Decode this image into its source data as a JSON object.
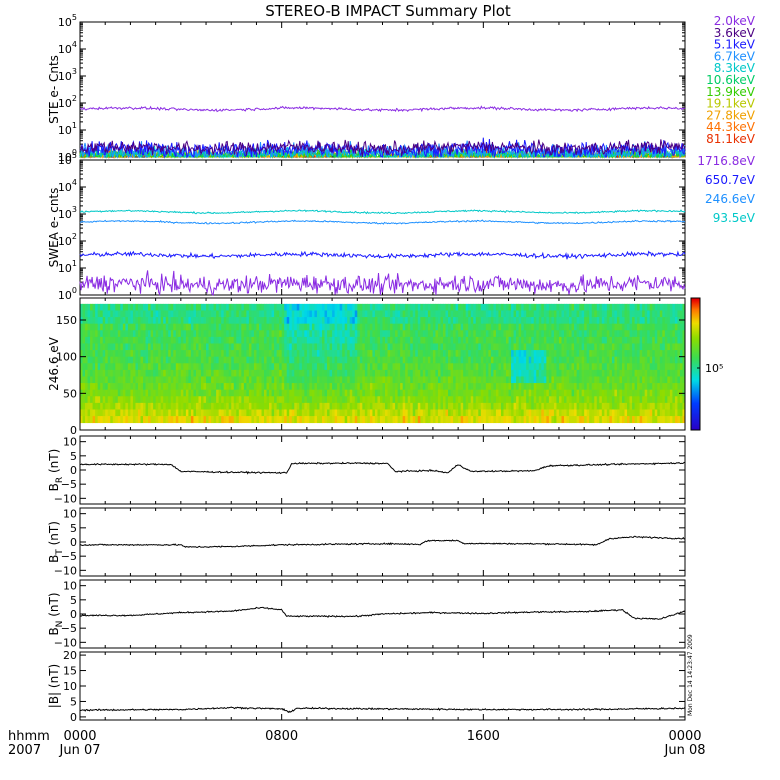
{
  "title": "STEREO-B IMPACT Summary Plot",
  "stamp": "Mon Dec 14 14:23:47 2009",
  "time_axis": {
    "corner_top": "hhmm",
    "corner_bottom": "2007",
    "ticks": [
      {
        "hours": 0,
        "label": "0000",
        "sub": "Jun 07"
      },
      {
        "hours": 8,
        "label": "0800",
        "sub": ""
      },
      {
        "hours": 16,
        "label": "1600",
        "sub": ""
      },
      {
        "hours": 24,
        "label": "0000",
        "sub": "Jun 08"
      }
    ],
    "range_hours": [
      0,
      24
    ]
  },
  "chart_data": [
    {
      "type": "line",
      "panel": "ste",
      "ylabel": "STE e- Cnts",
      "yscale": "log",
      "ylim": [
        1,
        100000
      ],
      "ytick_exponents": [
        0,
        1,
        2,
        3,
        4,
        5
      ],
      "series": [
        {
          "name": "2.0keV",
          "color": "#8a2be2",
          "level": 60,
          "spread": 0.05
        },
        {
          "name": "3.6keV",
          "color": "#4b0082",
          "level": 2.2,
          "spread": 0.25
        },
        {
          "name": "5.1keV",
          "color": "#1a1aff",
          "level": 1.9,
          "spread": 0.3
        },
        {
          "name": "6.7keV",
          "color": "#1e90ff",
          "level": 1.6,
          "spread": 0.3
        },
        {
          "name": "8.3keV",
          "color": "#00c8c8",
          "level": 1.3,
          "spread": 0.25
        },
        {
          "name": "10.6keV",
          "color": "#00cc66",
          "level": 1.2,
          "spread": 0.2
        },
        {
          "name": "13.9keV",
          "color": "#33cc00",
          "level": 1.15,
          "spread": 0.2
        },
        {
          "name": "19.1keV",
          "color": "#b8c800",
          "level": 1.1,
          "spread": 0.2
        },
        {
          "name": "27.8keV",
          "color": "#f0a000",
          "level": 1.1,
          "spread": 0.2
        },
        {
          "name": "44.3keV",
          "color": "#ff7000",
          "level": 1.05,
          "spread": 0.2
        },
        {
          "name": "81.1keV",
          "color": "#e83000",
          "level": 1.05,
          "spread": 0.2
        }
      ]
    },
    {
      "type": "line",
      "panel": "swea",
      "ylabel": "SWEA e- cnts",
      "yscale": "log",
      "ylim": [
        1,
        100000
      ],
      "ytick_exponents": [
        0,
        1,
        2,
        3,
        4,
        5
      ],
      "series": [
        {
          "name": "1716.8eV",
          "color": "#8a2be2",
          "level": 2.5,
          "spread": 0.35
        },
        {
          "name": "650.7eV",
          "color": "#1a1aff",
          "level": 30,
          "spread": 0.08
        },
        {
          "name": "246.6eV",
          "color": "#1e90ff",
          "level": 500,
          "spread": 0.03
        },
        {
          "name": "93.5eV",
          "color": "#00c8c8",
          "level": 1200,
          "spread": 0.03
        }
      ]
    },
    {
      "type": "heatmap",
      "panel": "pad",
      "ylabel": "246.6 eV",
      "ylim": [
        0,
        180
      ],
      "yticks": [
        0,
        50,
        100,
        150
      ],
      "colorbar_label": "10⁵"
    },
    {
      "type": "line",
      "panel": "br",
      "ylabel": "B",
      "ylabel_sub": "R",
      "ylabel_unit": " (nT)",
      "ylim": [
        -12,
        12
      ],
      "yticks": [
        10,
        5,
        0,
        -5,
        -10
      ],
      "series": [
        {
          "color": "#000000",
          "points": [
            [
              0,
              2
            ],
            [
              2.5,
              2
            ],
            [
              3.6,
              2
            ],
            [
              4,
              -0.5
            ],
            [
              6,
              -0.8
            ],
            [
              8.2,
              -1
            ],
            [
              8.4,
              2.3
            ],
            [
              11,
              2.4
            ],
            [
              12.2,
              2.3
            ],
            [
              12.5,
              -0.5
            ],
            [
              14,
              -0.2
            ],
            [
              14.6,
              -1
            ],
            [
              15,
              2
            ],
            [
              15.5,
              -0.5
            ],
            [
              18,
              -0.3
            ],
            [
              18.6,
              1.5
            ],
            [
              24,
              2.5
            ]
          ]
        }
      ]
    },
    {
      "type": "line",
      "panel": "bt",
      "ylabel": "B",
      "ylabel_sub": "T",
      "ylabel_unit": " (nT)",
      "ylim": [
        -12,
        12
      ],
      "yticks": [
        10,
        5,
        0,
        -5,
        -10
      ],
      "series": [
        {
          "color": "#000000",
          "points": [
            [
              0,
              -1
            ],
            [
              4,
              -1
            ],
            [
              4.2,
              -1.8
            ],
            [
              6,
              -1.6
            ],
            [
              8,
              -1
            ],
            [
              12,
              -0.6
            ],
            [
              13.5,
              -0.8
            ],
            [
              13.8,
              0.5
            ],
            [
              15,
              0.5
            ],
            [
              15.2,
              -0.5
            ],
            [
              19,
              -0.7
            ],
            [
              20.5,
              -1
            ],
            [
              21,
              1.2
            ],
            [
              22,
              1.8
            ],
            [
              24,
              1.2
            ]
          ]
        }
      ]
    },
    {
      "type": "line",
      "panel": "bn",
      "ylabel": "B",
      "ylabel_sub": "N",
      "ylabel_unit": " (nT)",
      "ylim": [
        -12,
        12
      ],
      "yticks": [
        10,
        5,
        0,
        -5,
        -10
      ],
      "series": [
        {
          "color": "#000000",
          "points": [
            [
              0,
              -0.5
            ],
            [
              2,
              -0.5
            ],
            [
              4,
              0.5
            ],
            [
              6,
              1
            ],
            [
              7.2,
              2.2
            ],
            [
              8,
              1.5
            ],
            [
              8.2,
              -0.8
            ],
            [
              11,
              -0.8
            ],
            [
              12,
              0
            ],
            [
              14,
              0.5
            ],
            [
              16,
              0.2
            ],
            [
              18,
              0.7
            ],
            [
              20,
              0.8
            ],
            [
              21.5,
              1.5
            ],
            [
              22,
              -1.5
            ],
            [
              23,
              -1.8
            ],
            [
              24,
              1
            ]
          ]
        }
      ]
    },
    {
      "type": "line",
      "panel": "bmag",
      "ylabel": "|B| (nT)",
      "ylim": [
        -1,
        21
      ],
      "yticks": [
        20,
        15,
        10,
        5,
        0
      ],
      "series": [
        {
          "color": "#000000",
          "points": [
            [
              0,
              2.2
            ],
            [
              4,
              2.4
            ],
            [
              6,
              3
            ],
            [
              8,
              2.6
            ],
            [
              8.3,
              1.5
            ],
            [
              8.6,
              2.8
            ],
            [
              12,
              2.6
            ],
            [
              16,
              2.4
            ],
            [
              20,
              2.4
            ],
            [
              22,
              2.6
            ],
            [
              24,
              2.8
            ]
          ]
        }
      ]
    }
  ]
}
